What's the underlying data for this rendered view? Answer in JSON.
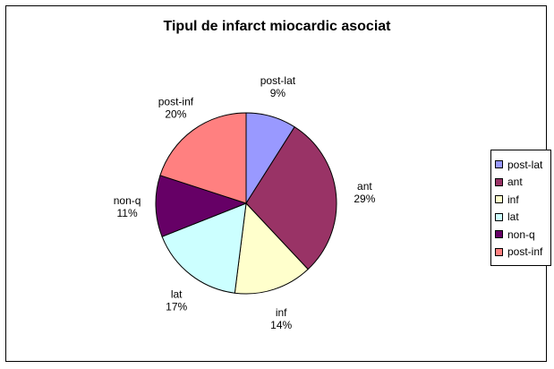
{
  "chart_data": {
    "type": "pie",
    "title": "Tipul de infarct miocardic asociat",
    "slices": [
      {
        "label": "post-lat",
        "value": 9,
        "pct_label": "9%",
        "color": "#9999ff"
      },
      {
        "label": "ant",
        "value": 29,
        "pct_label": "29%",
        "color": "#993366"
      },
      {
        "label": "inf",
        "value": 14,
        "pct_label": "14%",
        "color": "#ffffcc"
      },
      {
        "label": "lat",
        "value": 17,
        "pct_label": "17%",
        "color": "#ccffff"
      },
      {
        "label": "non-q",
        "value": 11,
        "pct_label": "11%",
        "color": "#660066"
      },
      {
        "label": "post-inf",
        "value": 20,
        "pct_label": "20%",
        "color": "#ff8080"
      }
    ],
    "legend_position": "right"
  }
}
